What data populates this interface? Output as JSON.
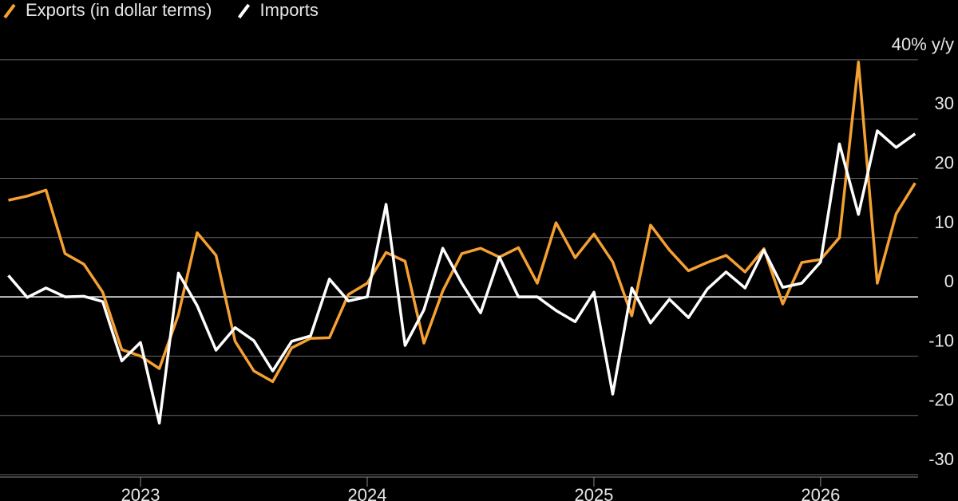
{
  "chart_data": {
    "type": "line",
    "x": [
      2022.417,
      2022.5,
      2022.583,
      2022.667,
      2022.75,
      2022.833,
      2022.917,
      2023.0,
      2023.083,
      2023.167,
      2023.25,
      2023.333,
      2023.417,
      2023.5,
      2023.583,
      2023.667,
      2023.75,
      2023.833,
      2023.917,
      2024.0,
      2024.083,
      2024.167,
      2024.25,
      2024.333,
      2024.417,
      2024.5,
      2024.583,
      2024.667,
      2024.75,
      2024.833,
      2024.917,
      2025.0,
      2025.083,
      2025.167,
      2025.25,
      2025.333,
      2025.417,
      2025.5,
      2025.583,
      2025.667,
      2025.75,
      2025.833,
      2025.917,
      2026.0,
      2026.083,
      2026.167,
      2026.25,
      2026.333,
      2026.417
    ],
    "series": [
      {
        "name": "Exports (in dollar terms)",
        "color": "#f5a033",
        "values": [
          16.3,
          17,
          18,
          7.3,
          5.5,
          0.8,
          -8.9,
          -10,
          -12.1,
          -3,
          10.8,
          7,
          -7.5,
          -12.5,
          -14.3,
          -8.6,
          -7,
          -6.9,
          0.4,
          2.3,
          7.5,
          6,
          -7.8,
          1,
          7.3,
          8.2,
          6.7,
          8.3,
          2.3,
          12.5,
          6.6,
          10.6,
          5.9,
          -3.2,
          12.1,
          7.9,
          4.4,
          5.8,
          7,
          4.2,
          8.1,
          -1.2,
          5.8,
          6.3,
          10,
          39.6,
          2.3,
          14,
          19.2
        ]
      },
      {
        "name": "Imports",
        "color": "#ffffff",
        "values": [
          3.6,
          -0.1,
          1.5,
          0,
          0.1,
          -0.8,
          -10.8,
          -7.7,
          -21.3,
          4,
          -1.5,
          -9,
          -5.2,
          -7.4,
          -12.5,
          -7.5,
          -6.6,
          3,
          -0.7,
          0,
          15.6,
          -8.2,
          -2.2,
          8.2,
          2.3,
          -2.7,
          6.7,
          0,
          0,
          -2.3,
          -4.2,
          0.8,
          -16.4,
          1.5,
          -4.4,
          -0.4,
          -3.5,
          1.3,
          4.2,
          1.5,
          7.9,
          1.6,
          2.3,
          5.9,
          25.8,
          13.9,
          28,
          25.2,
          27.5
        ]
      }
    ],
    "xlim": [
      2022.38,
      2026.43
    ],
    "xticks": [
      2023,
      2024,
      2025,
      2026
    ],
    "ylim": [
      -30.4,
      42
    ],
    "yticks": [
      {
        "value": 40,
        "label": "40% y/y"
      },
      30,
      20,
      10,
      0,
      -10,
      -20,
      -30
    ],
    "grid": true,
    "legend": "top-left"
  }
}
